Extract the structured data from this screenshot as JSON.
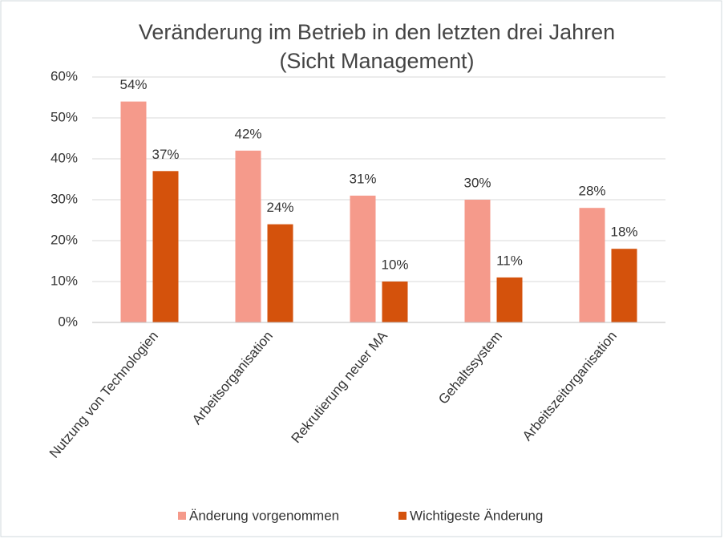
{
  "chart_data": {
    "type": "bar",
    "title": [
      "Veränderung im Betrieb in den letzten drei Jahren",
      "(Sicht Management)"
    ],
    "categories": [
      "Nutzung von Technologien",
      "Arbeitsorganisation",
      "Rekrutierung neuer MA",
      "Gehaltssystem",
      "Arbeitszeitorganisation"
    ],
    "series": [
      {
        "name": "Änderung vorgenommen",
        "color": "#f59a8b",
        "values": [
          54,
          42,
          31,
          30,
          28
        ],
        "value_labels": [
          "54%",
          "42%",
          "31%",
          "30%",
          "28%"
        ]
      },
      {
        "name": "Wichtigeste Änderung",
        "color": "#d4520c",
        "values": [
          37,
          24,
          10,
          11,
          18
        ],
        "value_labels": [
          "37%",
          "24%",
          "10%",
          "11%",
          "18%"
        ]
      }
    ],
    "ylim": [
      0,
      60
    ],
    "yticks": [
      {
        "value": 0,
        "label": "0%"
      },
      {
        "value": 10,
        "label": "10%"
      },
      {
        "value": 20,
        "label": "20%"
      },
      {
        "value": 30,
        "label": "30%"
      },
      {
        "value": 40,
        "label": "40%"
      },
      {
        "value": 50,
        "label": "50%"
      },
      {
        "value": 60,
        "label": "60%"
      }
    ],
    "grid": true,
    "legend": "bottom"
  }
}
